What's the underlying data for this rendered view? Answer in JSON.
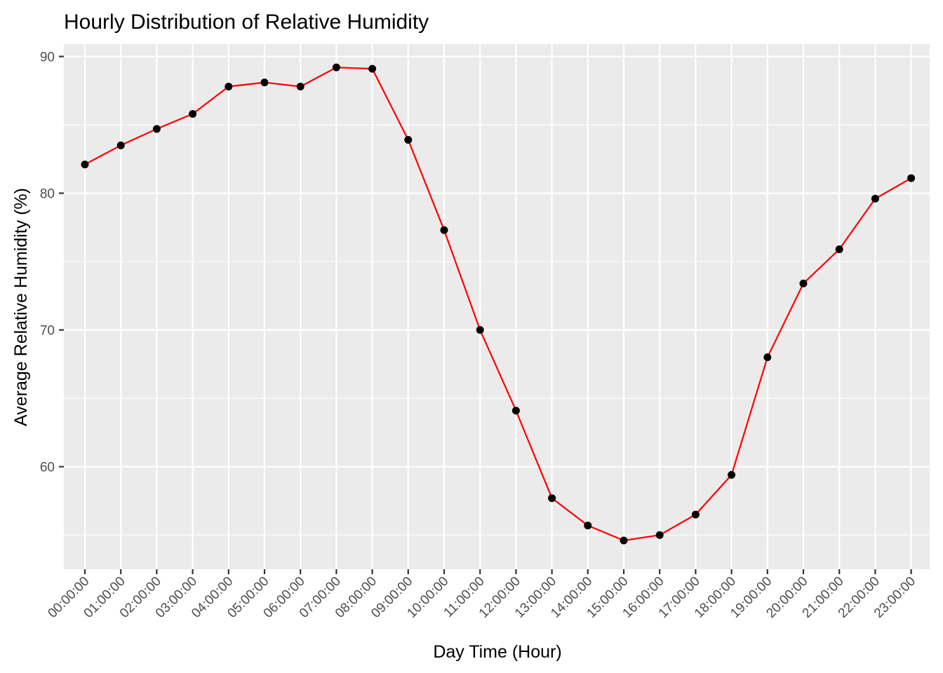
{
  "chart_data": {
    "type": "line",
    "title": "Hourly Distribution of Relative Humidity",
    "xlabel": "Day Time (Hour)",
    "ylabel": "Average Relative Humidity (%)",
    "categories": [
      "00:00:00",
      "01:00:00",
      "02:00:00",
      "03:00:00",
      "04:00:00",
      "05:00:00",
      "06:00:00",
      "07:00:00",
      "08:00:00",
      "09:00:00",
      "10:00:00",
      "11:00:00",
      "12:00:00",
      "13:00:00",
      "14:00:00",
      "15:00:00",
      "16:00:00",
      "17:00:00",
      "18:00:00",
      "19:00:00",
      "20:00:00",
      "21:00:00",
      "22:00:00",
      "23:00:00"
    ],
    "series": [
      {
        "values": [
          82.1,
          83.5,
          84.7,
          85.8,
          87.8,
          88.1,
          87.8,
          89.2,
          89.1,
          83.9,
          77.3,
          70.0,
          64.1,
          57.7,
          55.7,
          54.6,
          55.0,
          56.5,
          59.4,
          68.0,
          73.4,
          75.9,
          79.6,
          81.1
        ]
      }
    ],
    "yticks": [
      60,
      70,
      80,
      90
    ],
    "ylim": [
      52.5,
      90.9
    ],
    "grid": true,
    "line_color": "#ff0000",
    "point_color": "#000000",
    "panel_background": "#ebebeb",
    "grid_color": "#ffffff"
  }
}
